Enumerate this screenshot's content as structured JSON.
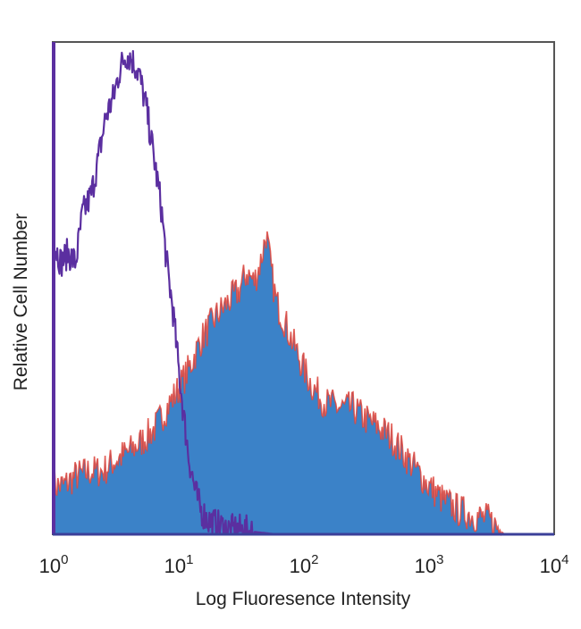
{
  "chart_data": {
    "type": "area",
    "title": "",
    "xlabel": "Log Fluoresence Intensity",
    "ylabel": "Relative Cell Number",
    "xscale": "log",
    "xlim": [
      1,
      10000
    ],
    "ylim": [
      0,
      100
    ],
    "grid": false,
    "legend": "none",
    "xticks": [
      {
        "value": 1,
        "base": "10",
        "exp": "0"
      },
      {
        "value": 10,
        "base": "10",
        "exp": "1"
      },
      {
        "value": 100,
        "base": "10",
        "exp": "2"
      },
      {
        "value": 1000,
        "base": "10",
        "exp": "3"
      },
      {
        "value": 10000,
        "base": "10",
        "exp": "4"
      }
    ],
    "series": [
      {
        "style": "line",
        "color": "#5b2fa0",
        "x": [
          1.0,
          1.15,
          1.3,
          1.5,
          1.7,
          2.0,
          2.3,
          2.6,
          3.0,
          3.4,
          3.8,
          4.2,
          4.8,
          5.5,
          6.3,
          7.2,
          8.0,
          9.0,
          10.0,
          11.0,
          12.0,
          13.5,
          15.0,
          17.0,
          20.0,
          25.0,
          30.0,
          40.0,
          60.0
        ],
        "y": [
          60,
          56,
          58,
          56,
          66,
          70,
          78,
          86,
          90,
          96,
          99,
          98,
          95,
          88,
          78,
          68,
          56,
          46,
          34,
          24,
          16,
          9,
          5,
          3,
          2,
          1,
          1,
          0.5,
          0
        ]
      },
      {
        "style": "filled",
        "color": "#3b82c8",
        "edge_color": "#e0443a",
        "x": [
          1.0,
          1.2,
          1.5,
          2.0,
          2.5,
          3.0,
          4.0,
          5.0,
          6.5,
          8.0,
          10.0,
          12.0,
          15.0,
          20.0,
          25.0,
          30.0,
          35.0,
          40.0,
          45.0,
          50.0,
          55.0,
          60.0,
          70.0,
          80.0,
          100.0,
          120.0,
          150.0,
          200.0,
          250.0,
          300.0,
          400.0,
          500.0,
          700.0,
          1000.0,
          1300.0,
          1700.0,
          2200.0,
          3000.0,
          4000.0
        ],
        "y": [
          10,
          10,
          12,
          13,
          13,
          15,
          17,
          19,
          22,
          26,
          30,
          34,
          40,
          45,
          48,
          50,
          54,
          52,
          56,
          62,
          54,
          48,
          44,
          40,
          34,
          30,
          27,
          26,
          26,
          24,
          22,
          20,
          15,
          10,
          7,
          5,
          4,
          3,
          0
        ]
      }
    ]
  }
}
